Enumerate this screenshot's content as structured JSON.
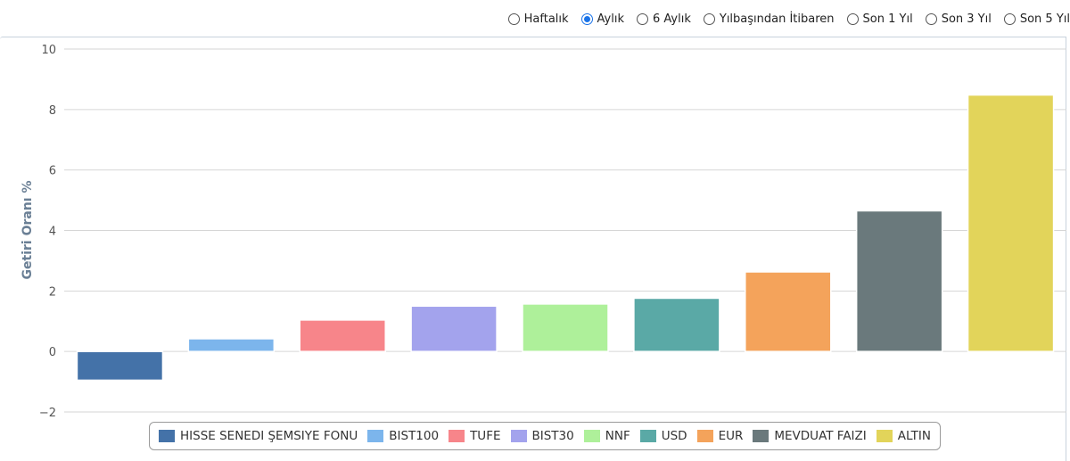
{
  "period_selector": {
    "options": [
      {
        "label": "Haftalık",
        "checked": false
      },
      {
        "label": "Aylık",
        "checked": true
      },
      {
        "label": "6 Aylık",
        "checked": false
      },
      {
        "label": "Yılbaşından İtibaren",
        "checked": false
      },
      {
        "label": "Son 1 Yıl",
        "checked": false
      },
      {
        "label": "Son 3 Yıl",
        "checked": false
      },
      {
        "label": "Son 5 Yıl",
        "checked": false
      }
    ],
    "accent_color": "#1a73e8"
  },
  "chart_data": {
    "type": "bar",
    "title": "",
    "xlabel": "",
    "ylabel": "Getiri Oranı %",
    "ylim": [
      -2,
      10
    ],
    "yticks": [
      10,
      8,
      6,
      4,
      2,
      0,
      -2
    ],
    "ytick_labels": [
      "10",
      "8",
      "6",
      "4",
      "2",
      "0",
      "−2"
    ],
    "grid": true,
    "legend_position": "bottom",
    "categories": [
      "HISSE SENEDI ŞEMSIYE FONU",
      "BIST100",
      "TUFE",
      "BIST30",
      "NNF",
      "USD",
      "EUR",
      "MEVDUAT FAIZI",
      "ALTIN"
    ],
    "values": [
      -0.95,
      0.42,
      1.04,
      1.5,
      1.57,
      1.76,
      2.63,
      4.65,
      8.48
    ],
    "colors": [
      "#4472a8",
      "#7cb5ec",
      "#f7858a",
      "#a3a3ed",
      "#aef09a",
      "#5aa9a6",
      "#f4a35b",
      "#6a797c",
      "#e2d45a"
    ]
  }
}
